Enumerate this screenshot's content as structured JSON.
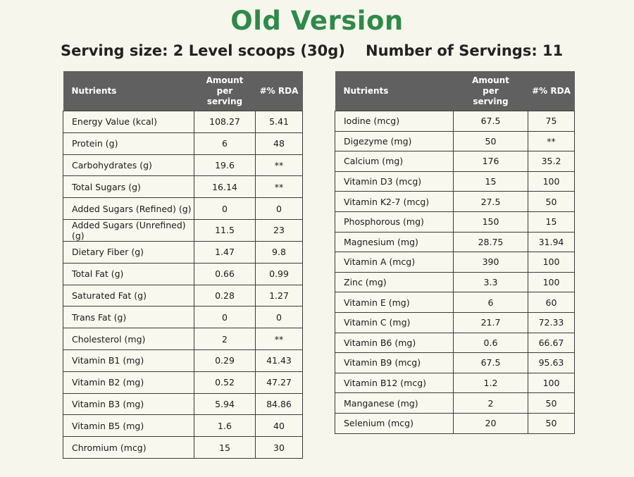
{
  "title": "Old Version",
  "serving_size": "Serving size: 2 Level scoops (30g)",
  "servings_count": "Number of Servings: 11",
  "headers": {
    "nutrients": "Nutrients",
    "amount_line1": "Amount",
    "amount_line2": "per",
    "amount_line3": "serving",
    "rda": "#% RDA"
  },
  "left_rows": [
    {
      "nutrient": "Energy Value (kcal)",
      "amount": "108.27",
      "rda": "5.41"
    },
    {
      "nutrient": "Protein (g)",
      "amount": "6",
      "rda": "48"
    },
    {
      "nutrient": "Carbohydrates (g)",
      "amount": "19.6",
      "rda": "**"
    },
    {
      "nutrient": "Total Sugars (g)",
      "amount": "16.14",
      "rda": "**"
    },
    {
      "nutrient": "Added Sugars (Refined) (g)",
      "amount": "0",
      "rda": "0"
    },
    {
      "nutrient": "Added Sugars (Unrefined) (g)",
      "amount": "11.5",
      "rda": "23"
    },
    {
      "nutrient": "Dietary Fiber (g)",
      "amount": "1.47",
      "rda": "9.8"
    },
    {
      "nutrient": "Total Fat (g)",
      "amount": "0.66",
      "rda": "0.99"
    },
    {
      "nutrient": "Saturated Fat (g)",
      "amount": "0.28",
      "rda": "1.27"
    },
    {
      "nutrient": "Trans Fat (g)",
      "amount": "0",
      "rda": "0"
    },
    {
      "nutrient": "Cholesterol (mg)",
      "amount": "2",
      "rda": "**"
    },
    {
      "nutrient": "Vitamin B1 (mg)",
      "amount": "0.29",
      "rda": "41.43"
    },
    {
      "nutrient": "Vitamin B2 (mg)",
      "amount": "0.52",
      "rda": "47.27"
    },
    {
      "nutrient": "Vitamin B3 (mg)",
      "amount": "5.94",
      "rda": "84.86"
    },
    {
      "nutrient": "Vitamin B5 (mg)",
      "amount": "1.6",
      "rda": "40"
    },
    {
      "nutrient": "Chromium (mcg)",
      "amount": "15",
      "rda": "30"
    }
  ],
  "right_rows": [
    {
      "nutrient": "Iodine (mcg)",
      "amount": "67.5",
      "rda": "75"
    },
    {
      "nutrient": "Digezyme (mg)",
      "amount": "50",
      "rda": "**"
    },
    {
      "nutrient": "Calcium (mg)",
      "amount": "176",
      "rda": "35.2"
    },
    {
      "nutrient": "Vitamin D3 (mcg)",
      "amount": "15",
      "rda": "100"
    },
    {
      "nutrient": "Vitamin K2-7 (mcg)",
      "amount": "27.5",
      "rda": "50"
    },
    {
      "nutrient": "Phosphorous (mg)",
      "amount": "150",
      "rda": "15"
    },
    {
      "nutrient": "Magnesium (mg)",
      "amount": "28.75",
      "rda": "31.94"
    },
    {
      "nutrient": "Vitamin A (mcg)",
      "amount": "390",
      "rda": "100"
    },
    {
      "nutrient": "Zinc (mg)",
      "amount": "3.3",
      "rda": "100"
    },
    {
      "nutrient": "Vitamin E (mg)",
      "amount": "6",
      "rda": "60"
    },
    {
      "nutrient": "Vitamin C (mg)",
      "amount": "21.7",
      "rda": "72.33"
    },
    {
      "nutrient": "Vitamin B6 (mg)",
      "amount": "0.6",
      "rda": "66.67"
    },
    {
      "nutrient": "Vitamin B9 (mcg)",
      "amount": "67.5",
      "rda": "95.63"
    },
    {
      "nutrient": "Vitamin B12 (mcg)",
      "amount": "1.2",
      "rda": "100"
    },
    {
      "nutrient": "Manganese (mg)",
      "amount": "2",
      "rda": "50"
    },
    {
      "nutrient": "Selenium (mcg)",
      "amount": "20",
      "rda": "50"
    }
  ],
  "colors": {
    "title_green": "#2e8a4a",
    "header_gray": "#606060",
    "background": "#f6f6ec"
  }
}
